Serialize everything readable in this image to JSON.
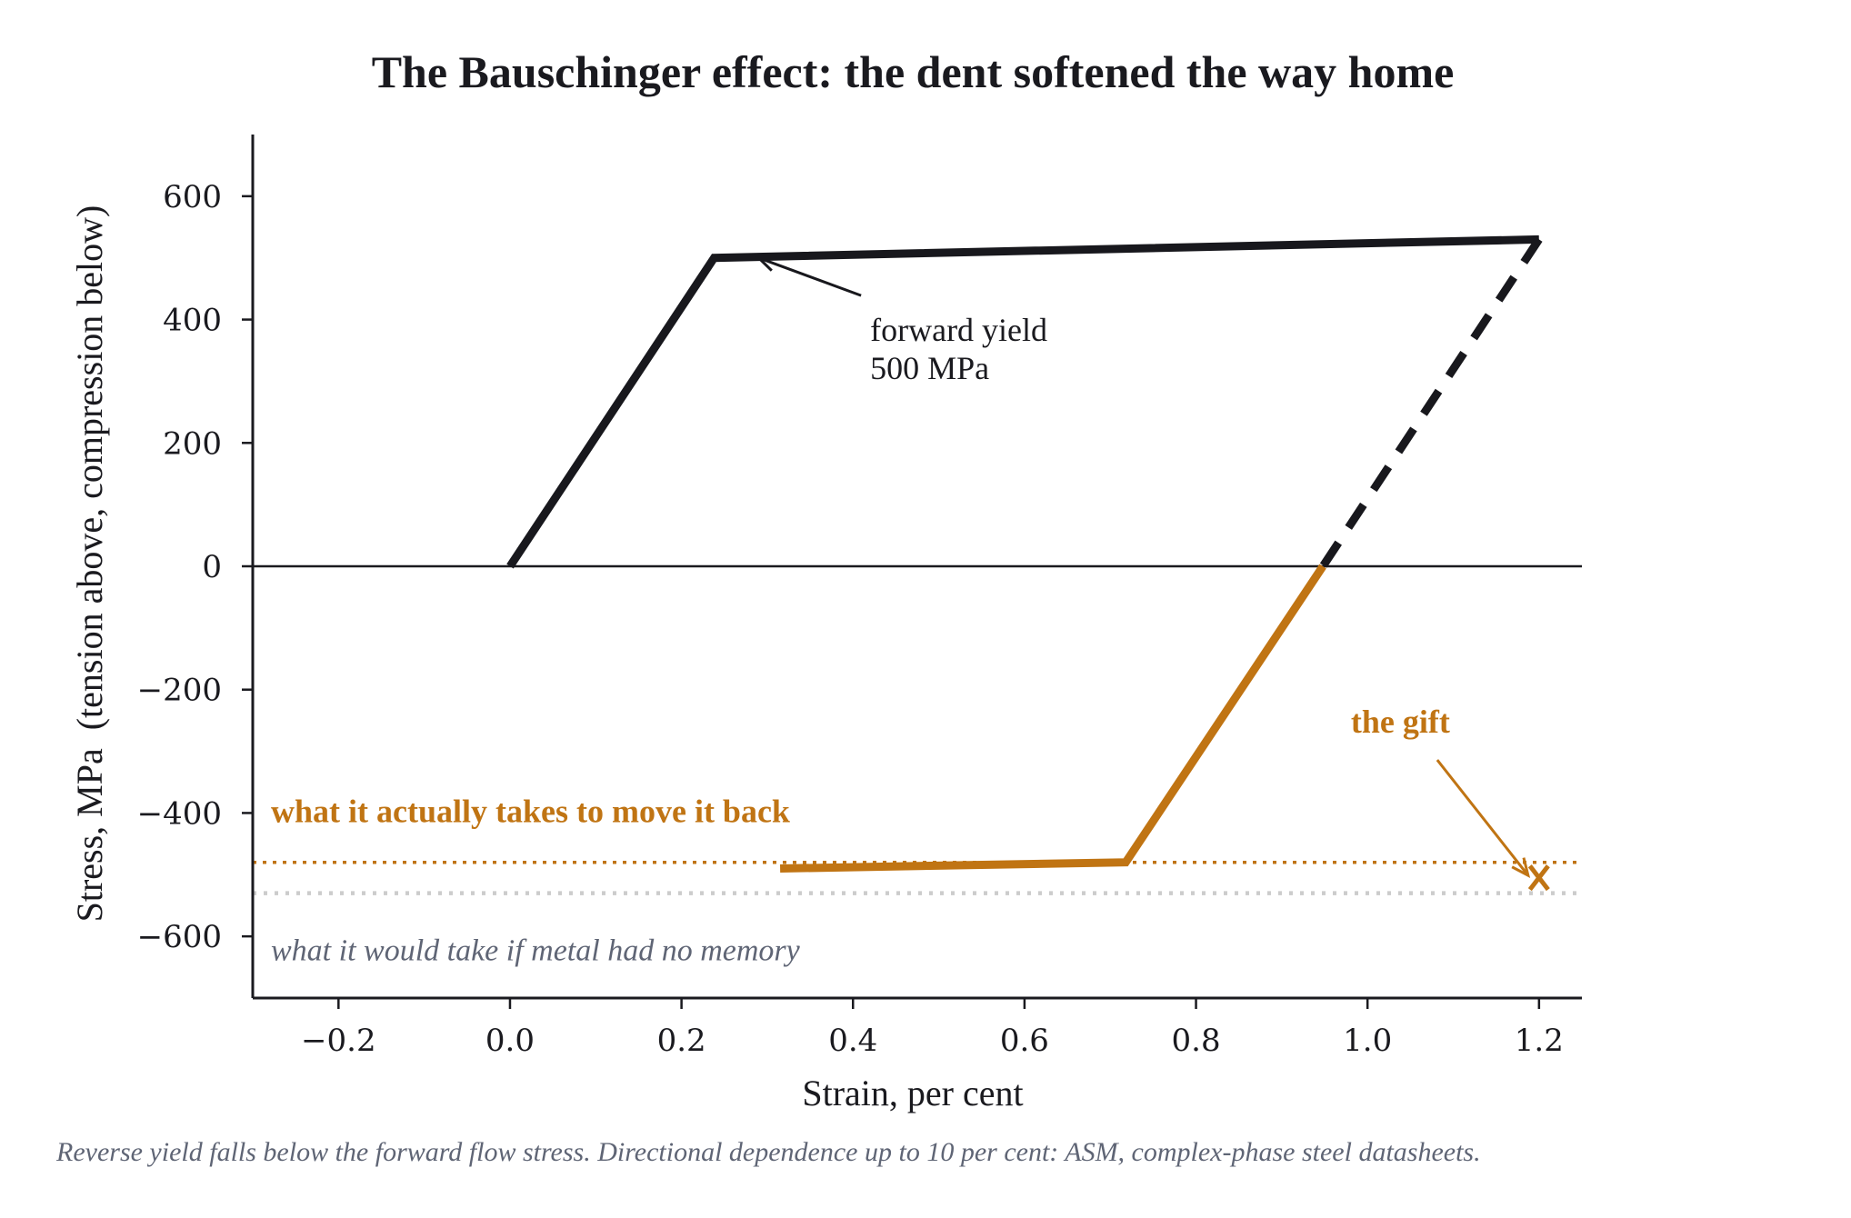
{
  "chart_data": {
    "type": "line",
    "title": "The Bauschinger effect: the dent softened the way home",
    "xlabel": "Strain, per cent",
    "ylabel": "Stress, MPa  (tension above, compression below)",
    "xlim": [
      -0.3,
      1.25
    ],
    "ylim": [
      -700,
      700
    ],
    "x_ticks": [
      -0.2,
      0.0,
      0.2,
      0.4,
      0.6,
      0.8,
      1.0,
      1.2
    ],
    "x_tick_labels": [
      "−0.2",
      "0.0",
      "0.2",
      "0.4",
      "0.6",
      "0.8",
      "1.0",
      "1.2"
    ],
    "y_ticks": [
      600,
      400,
      200,
      0,
      -200,
      -400,
      -600
    ],
    "y_tick_labels": [
      "600",
      "400",
      "200",
      "0",
      "−200",
      "−400",
      "−600"
    ],
    "grid": false,
    "series": [
      {
        "id": "forward",
        "style": "solid",
        "color": "#18181d",
        "x": [
          0.0,
          0.238,
          1.2
        ],
        "y": [
          0,
          500,
          530
        ]
      },
      {
        "id": "unload",
        "style": "dashed",
        "color": "#18181d",
        "x": [
          1.2,
          0.948
        ],
        "y": [
          530,
          0
        ]
      },
      {
        "id": "reverse",
        "style": "solid",
        "color": "#c07413",
        "x": [
          0.948,
          0.718,
          0.315
        ],
        "y": [
          0,
          -480,
          -490
        ]
      }
    ],
    "reference_lines": [
      {
        "y": -480,
        "color": "#c07413",
        "style": "dotted",
        "label": "what it actually takes to move it back"
      },
      {
        "y": -530,
        "color": "#cccccc",
        "style": "dotted",
        "label": "what it would take if metal had no memory"
      }
    ],
    "annotations": [
      {
        "id": "forward-yield",
        "lines": [
          "forward yield",
          "500 MPa"
        ],
        "color": "#18181d",
        "text_at": [
          0.42,
          380
        ],
        "arrow_to": [
          0.29,
          500
        ]
      },
      {
        "id": "gift",
        "lines": [
          "the gift"
        ],
        "color": "#c07413",
        "text_at": [
          0.97,
          -255
        ],
        "arrow_to": [
          1.2,
          -510
        ]
      }
    ],
    "gap_marker": {
      "x": 1.2,
      "y_from": -480,
      "y_to": -530,
      "color": "#c07413"
    },
    "footnote": "Reverse yield falls below the forward flow stress. Directional dependence up to 10 per cent: ASM, complex-phase steel datasheets."
  }
}
